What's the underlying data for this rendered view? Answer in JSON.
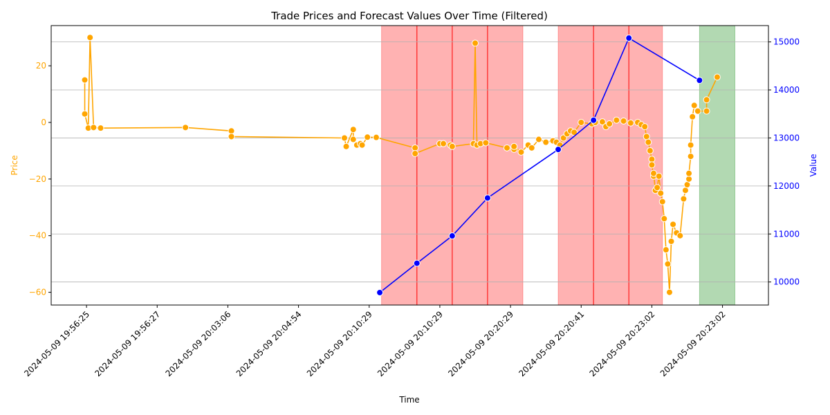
{
  "chart_data": {
    "type": "line",
    "title": "Trade Prices and Forecast Values Over Time (Filtered)",
    "xlabel": "Time",
    "ylabel_left": "Price",
    "ylabel_right": "Value",
    "x_tick_labels": [
      "2024-05-09 19:56:25",
      "2024-05-09 19:56:27",
      "2024-05-09 20:03:06",
      "2024-05-09 20:04:54",
      "2024-05-09 20:10:29",
      "2024-05-09 20:10:29",
      "2024-05-09 20:20:29",
      "2024-05-09 20:20:41",
      "2024-05-09 20:23:02",
      "2024-05-09 20:23:02"
    ],
    "x_tick_positions": [
      0,
      2,
      4,
      6,
      8,
      10,
      12,
      14,
      16,
      18
    ],
    "xlim": [
      -1,
      19.3
    ],
    "ylim_left": [
      -64.5,
      34.2
    ],
    "ylim_right": [
      9520,
      15340
    ],
    "yticks_left": [
      20,
      0,
      -20,
      -40,
      -60
    ],
    "yticks_right": [
      15000,
      14000,
      13000,
      12000,
      11000,
      10000
    ],
    "colors": {
      "price": "#ffa500",
      "value": "#0000ff",
      "red_band": "#ff0000",
      "green_band": "#008000",
      "left_axis_text": "#ffa500",
      "right_axis_text": "#0000ff"
    },
    "bands": [
      {
        "type": "red",
        "x0": 8.35,
        "x1": 9.35
      },
      {
        "type": "red",
        "x0": 9.35,
        "x1": 10.35
      },
      {
        "type": "red",
        "x0": 10.35,
        "x1": 11.35
      },
      {
        "type": "red",
        "x0": 11.35,
        "x1": 12.35
      },
      {
        "type": "red",
        "x0": 13.35,
        "x1": 14.35
      },
      {
        "type": "red",
        "x0": 14.35,
        "x1": 15.35
      },
      {
        "type": "red",
        "x0": 15.35,
        "x1": 16.3
      },
      {
        "type": "green",
        "x0": 17.35,
        "x1": 18.35
      }
    ],
    "band_edges": [
      9.35,
      10.35,
      11.35,
      14.35,
      15.35
    ],
    "series": [
      {
        "name": "Price",
        "axis": "left",
        "x": [
          -0.05,
          -0.05,
          0.05,
          0.1,
          0.2,
          0.4,
          2.8,
          4.1,
          4.1,
          7.3,
          7.35,
          7.55,
          7.55,
          7.65,
          7.75,
          7.8,
          7.95,
          8.2,
          9.3,
          9.3,
          10.0,
          10.1,
          10.3,
          10.35,
          10.95,
          11.0,
          11.05,
          11.15,
          11.3,
          11.9,
          12.1,
          12.1,
          12.3,
          12.5,
          12.6,
          12.8,
          13.0,
          13.2,
          13.3,
          13.4,
          13.5,
          13.6,
          13.7,
          13.8,
          14.0,
          14.3,
          14.4,
          14.6,
          14.7,
          14.8,
          15.0,
          15.2,
          15.4,
          15.6,
          15.7,
          15.8,
          15.85,
          15.9,
          15.95,
          16.0,
          16.0,
          16.05,
          16.05,
          16.1,
          16.15,
          16.2,
          16.25,
          16.3,
          16.35,
          16.4,
          16.45,
          16.5,
          16.55,
          16.6,
          16.7,
          16.8,
          16.9,
          16.95,
          17.0,
          17.05,
          17.05,
          17.1,
          17.1,
          17.15,
          17.2,
          17.3,
          17.55,
          17.55,
          17.85
        ],
        "y": [
          15,
          3,
          -2,
          30,
          -1.8,
          -2,
          -1.8,
          -3,
          -5,
          -5.5,
          -8.5,
          -2.5,
          -6,
          -8,
          -7.5,
          -8,
          -5.2,
          -5.3,
          -9,
          -11,
          -7.5,
          -7.5,
          -8,
          -8.5,
          -7.5,
          28,
          -8,
          -7.5,
          -7.2,
          -9,
          -9.5,
          -8.5,
          -10.5,
          -8,
          -9,
          -6,
          -7,
          -6.5,
          -7,
          -8,
          -5.5,
          -4,
          -3,
          -3.5,
          0,
          -0.5,
          0,
          0.2,
          -1.5,
          -0.5,
          0.8,
          0.5,
          -0.2,
          0,
          -0.8,
          -1.5,
          -5,
          -7,
          -10,
          -13,
          -15,
          -19,
          -18,
          -24,
          -23,
          -19,
          -25,
          -28,
          -34,
          -45,
          -50,
          -60,
          -42,
          -36,
          -39,
          -40,
          -27,
          -24,
          -22,
          -20,
          -18,
          -12,
          -8,
          2,
          6,
          4,
          4,
          8,
          16
        ]
      },
      {
        "name": "Value",
        "axis": "right",
        "x": [
          8.3,
          9.35,
          10.35,
          11.35,
          13.35,
          14.35,
          15.35,
          17.35
        ],
        "y": [
          9780,
          10390,
          10960,
          11750,
          12760,
          13370,
          15080,
          14200
        ]
      }
    ]
  }
}
